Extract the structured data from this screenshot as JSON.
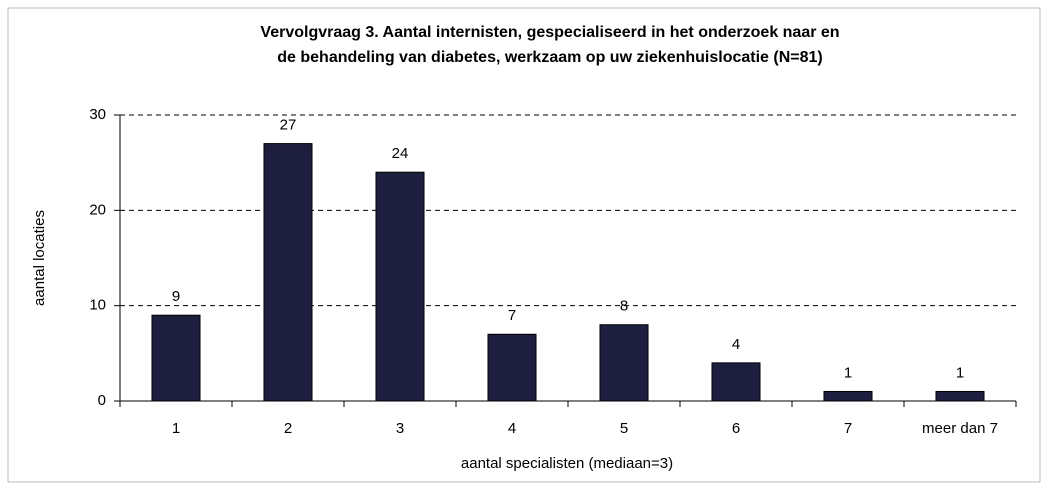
{
  "chart_data": {
    "type": "bar",
    "title": [
      "Vervolgvraag 3. Aantal internisten, gespecialiseerd in het onderzoek naar en",
      "de behandeling van diabetes, werkzaam op uw ziekenhuislocatie (N=81)"
    ],
    "x_label": "aantal specialisten (mediaan=3)",
    "y_label": "aantal locaties",
    "categories": [
      "1",
      "2",
      "3",
      "4",
      "5",
      "6",
      "7",
      "meer dan 7"
    ],
    "values": [
      9,
      27,
      24,
      7,
      8,
      4,
      1,
      1
    ],
    "color": "#1e1e3e",
    "ylim": [
      0,
      30
    ],
    "yticks": [
      0,
      10,
      20,
      30
    ],
    "grid": true
  }
}
